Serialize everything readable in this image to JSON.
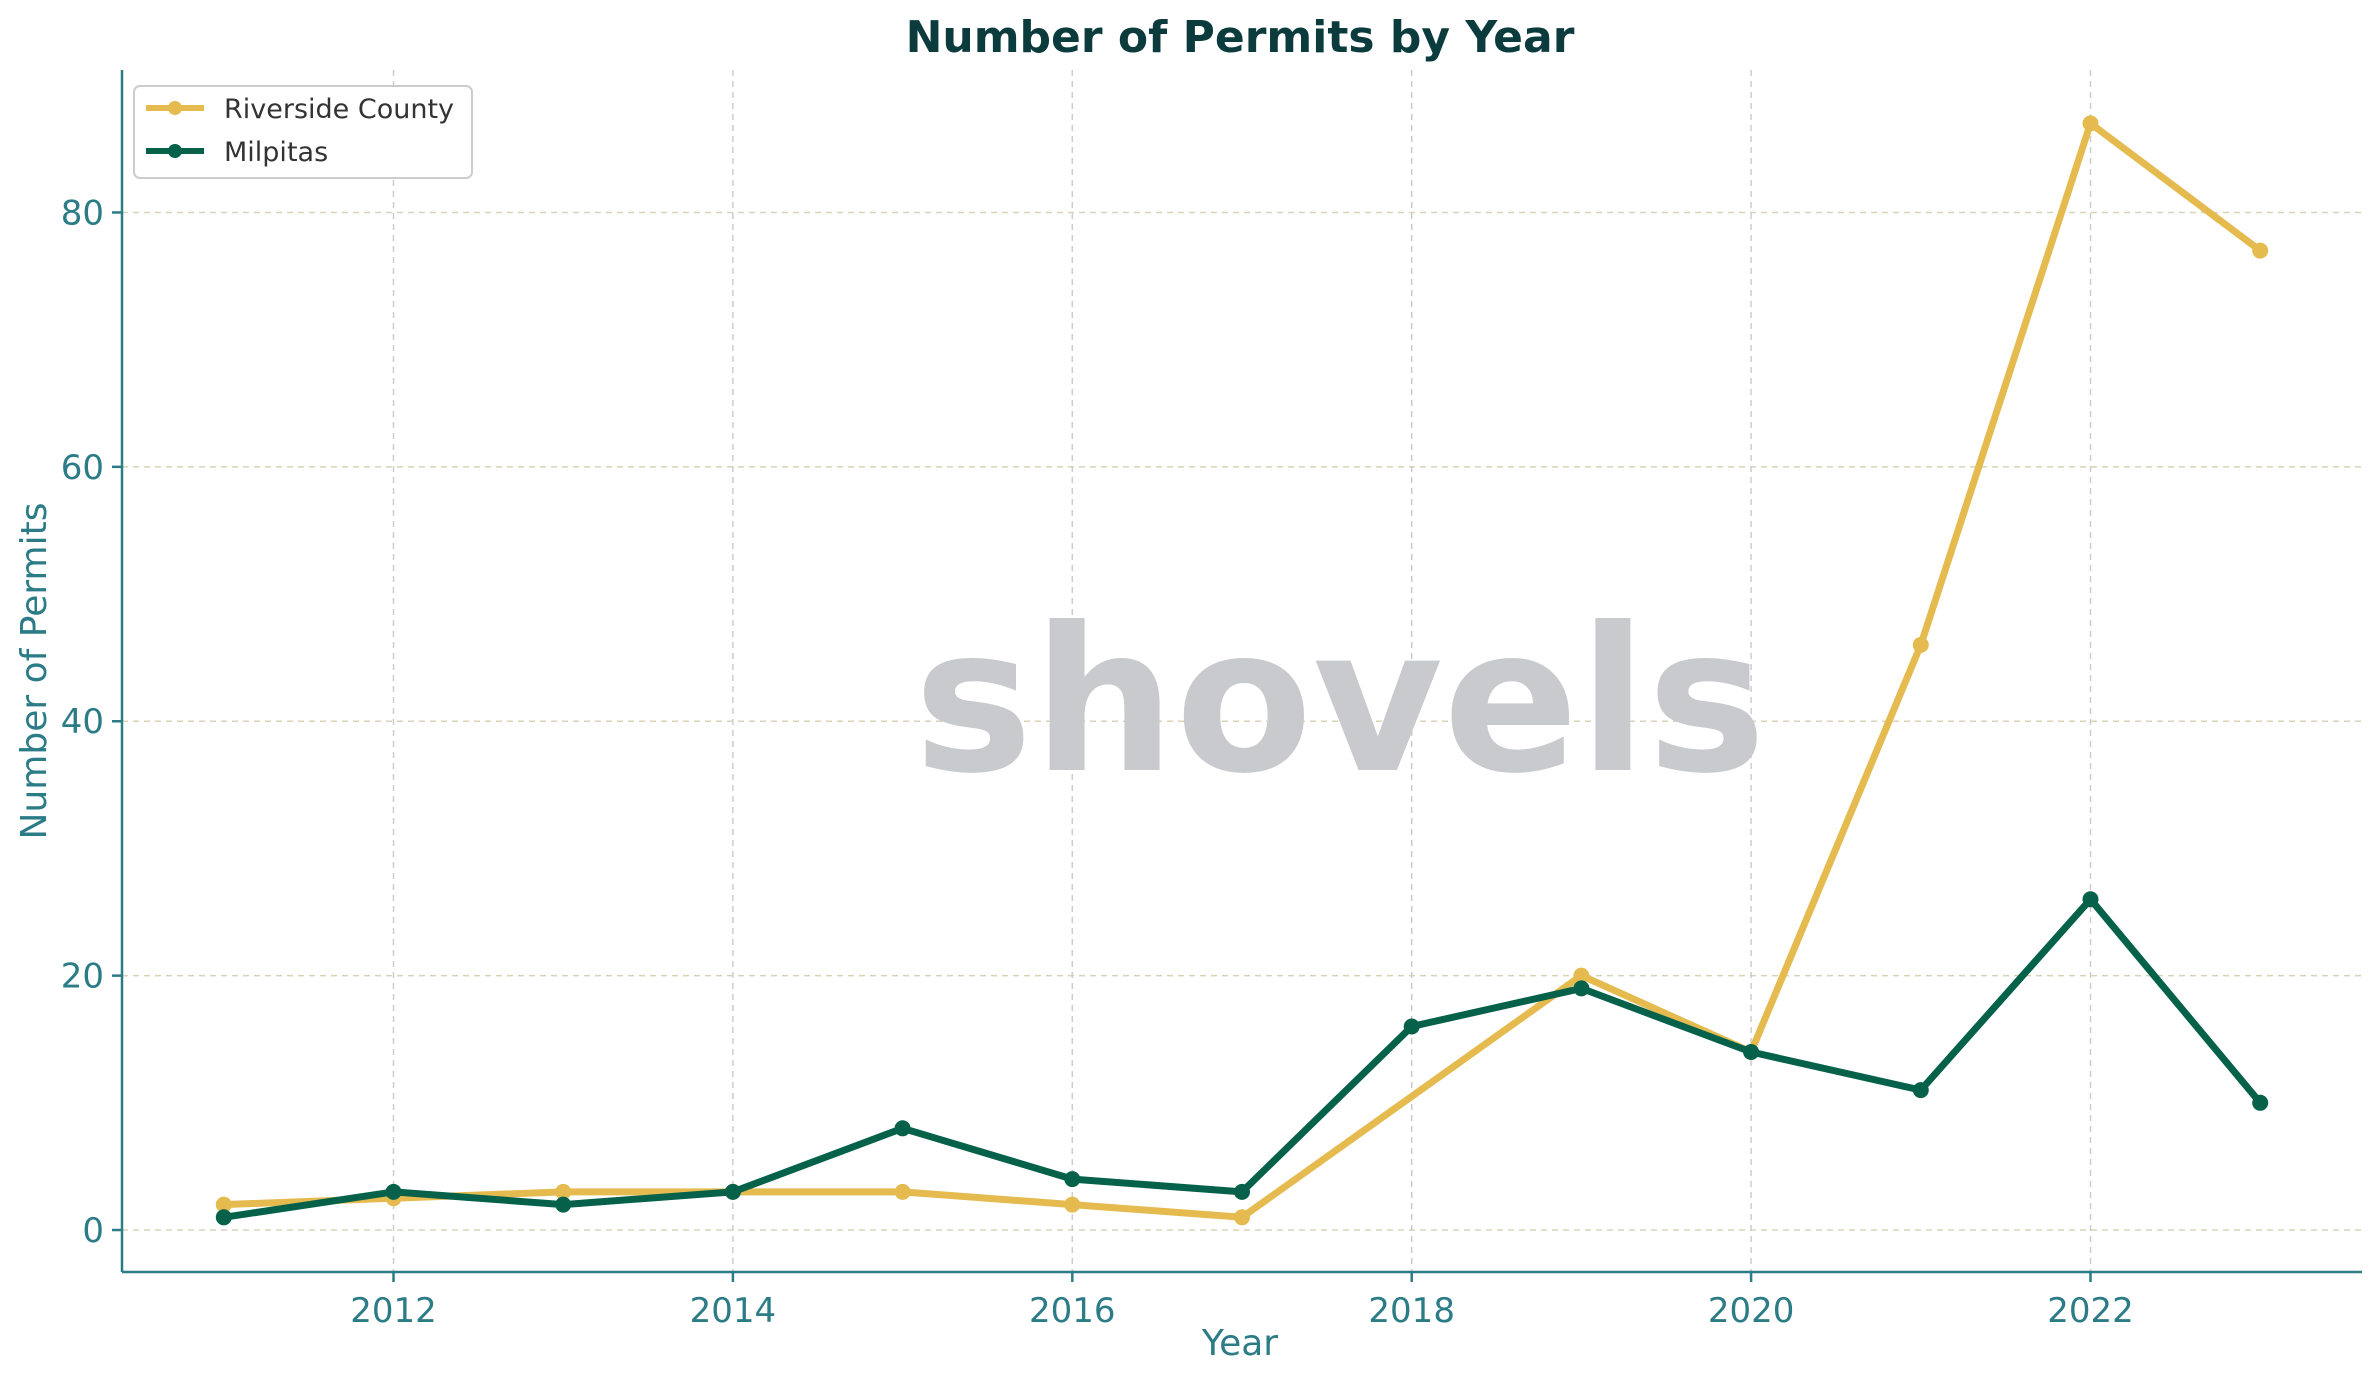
{
  "chart_data": {
    "type": "line",
    "title": "Number of Permits by Year",
    "xlabel": "Year",
    "ylabel": "Number of Permits",
    "x": [
      2011,
      2012,
      2013,
      2014,
      2015,
      2016,
      2017,
      2018,
      2019,
      2020,
      2021,
      2022,
      2023
    ],
    "xlim": [
      2010.4,
      2023.6
    ],
    "ylim": [
      -3.3,
      91.2
    ],
    "x_ticks": [
      2012,
      2014,
      2016,
      2018,
      2020,
      2022
    ],
    "y_ticks": [
      0,
      20,
      40,
      60,
      80
    ],
    "grid": true,
    "legend_position": "top-left",
    "series": [
      {
        "name": "Riverside County",
        "color": "#e5bb4f",
        "points": [
          [
            2011,
            2
          ],
          [
            2012,
            2.5
          ],
          [
            2013,
            3
          ],
          [
            2014,
            3
          ],
          [
            2015,
            3
          ],
          [
            2016,
            2
          ],
          [
            2017,
            1
          ],
          [
            2019,
            20
          ],
          [
            2020,
            14
          ],
          [
            2021,
            46
          ],
          [
            2022,
            87
          ],
          [
            2023,
            77
          ]
        ]
      },
      {
        "name": "Milpitas",
        "color": "#06614a",
        "points": [
          [
            2011,
            1
          ],
          [
            2012,
            3
          ],
          [
            2013,
            2
          ],
          [
            2014,
            3
          ],
          [
            2015,
            8
          ],
          [
            2016,
            4
          ],
          [
            2017,
            3
          ],
          [
            2018,
            16
          ],
          [
            2019,
            19
          ],
          [
            2020,
            14
          ],
          [
            2021,
            11
          ],
          [
            2022,
            26
          ],
          [
            2023,
            10
          ]
        ]
      }
    ]
  },
  "watermark": {
    "text": "shovels",
    "color": "#c9cacd"
  }
}
